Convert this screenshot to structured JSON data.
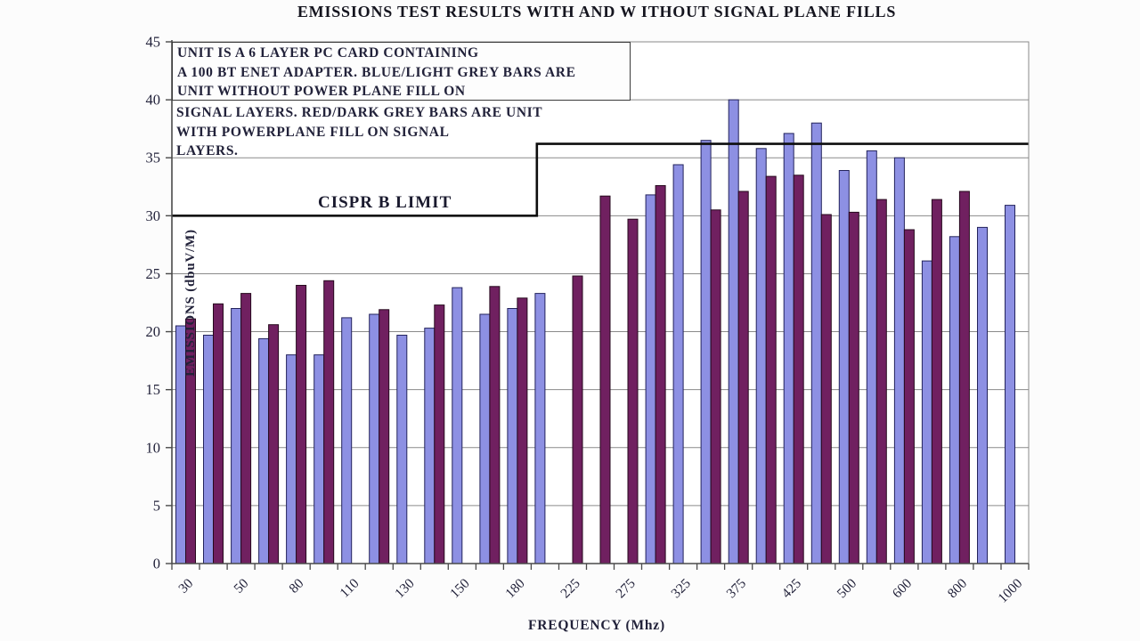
{
  "chart_data": {
    "type": "bar",
    "title": "EMISSIONS TEST RESULTS WITH AND W ITHOUT SIGNAL PLANE FILLS",
    "xlabel": "FREQUENCY (Mhz)",
    "ylabel": "EMISSIONS (dbuV/M)",
    "ylim": [
      0,
      45
    ],
    "yticks": [
      0,
      5,
      10,
      15,
      20,
      25,
      30,
      35,
      40,
      45
    ],
    "grid": "horizontal",
    "legend_position": "none (series described in note box)",
    "note_lines": [
      "UNIT IS A 6 LAYER PC CARD CONTAINING",
      "A 100 BT ENET ADAPTER.  BLUE/LIGHT GREY  BARS ARE",
      "UNIT WITHOUT POWER PLANE FILL ON",
      "SIGNAL LAYERS.  RED/DARK GREY  BARS ARE UNIT",
      "WITH  POWERPLANE  FILL ON SIGNAL",
      "LAYERS."
    ],
    "categories": [
      "30",
      "",
      "50",
      "",
      "80",
      "",
      "110",
      "",
      "130",
      "",
      "150",
      "",
      "180",
      "",
      "225",
      "",
      "275",
      "",
      "325",
      "",
      "375",
      "",
      "425",
      "",
      "500",
      "",
      "600",
      "",
      "800",
      "",
      "1000"
    ],
    "series": [
      {
        "name": "Unit without power plane fill on signal layers (blue/light grey bars)",
        "color": "#8d90e3",
        "border": "#23235c",
        "values": [
          20.5,
          19.7,
          22.0,
          19.4,
          18.0,
          18.0,
          21.2,
          21.5,
          19.7,
          20.3,
          23.8,
          21.5,
          22.0,
          23.3,
          null,
          null,
          null,
          31.8,
          34.4,
          36.5,
          40.0,
          35.8,
          37.1,
          38.0,
          33.9,
          35.6,
          35.0,
          26.1,
          28.2,
          29.0,
          30.9
        ]
      },
      {
        "name": "Unit with powerplane fill on signal layers (red/dark grey bars)",
        "color": "#702060",
        "border": "#26091d",
        "values": [
          21.1,
          22.4,
          23.3,
          20.6,
          24.0,
          24.4,
          null,
          21.9,
          null,
          22.3,
          null,
          23.9,
          22.9,
          null,
          24.8,
          31.7,
          29.7,
          32.6,
          null,
          30.5,
          32.1,
          33.4,
          33.5,
          30.1,
          30.3,
          31.4,
          28.8,
          31.4,
          32.1,
          null,
          null
        ]
      }
    ],
    "limit_line": {
      "label": "CISPR B LIMIT",
      "low_value": 30,
      "high_value": 36.2,
      "step_x_fraction": 0.426,
      "color": "#0d0d0d"
    }
  }
}
